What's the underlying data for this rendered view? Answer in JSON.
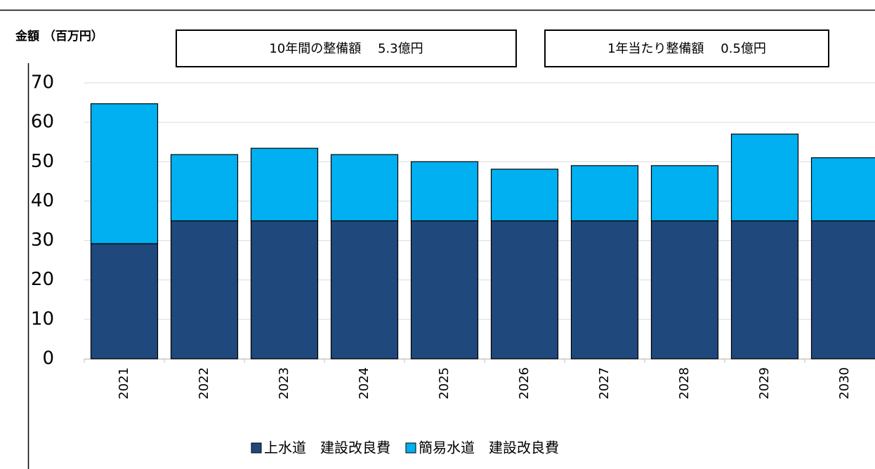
{
  "chart_data": {
    "type": "stacked_bar",
    "y_axis_label": "金額 （百万円）",
    "annotations": [
      "10年間の整備額　 5.3億円",
      "1年当たり整備額　 0.5億円"
    ],
    "categories": [
      "2021",
      "2022",
      "2023",
      "2024",
      "2025",
      "2026",
      "2027",
      "2028",
      "2029",
      "2030"
    ],
    "series": [
      {
        "name": "上水道　建設改良費",
        "color": "#1f497d",
        "values": [
          29.2,
          35,
          35,
          35,
          35,
          35,
          35,
          35,
          35,
          35
        ]
      },
      {
        "name": "簡易水道　建設改良費",
        "color": "#00b0f0",
        "values": [
          35.5,
          16.8,
          18.4,
          16.8,
          15,
          13.1,
          14,
          14,
          22,
          16
        ]
      }
    ],
    "ylim": [
      0,
      70
    ],
    "yticks": [
      0,
      10,
      20,
      30,
      40,
      50,
      60,
      70
    ],
    "grid": true
  }
}
